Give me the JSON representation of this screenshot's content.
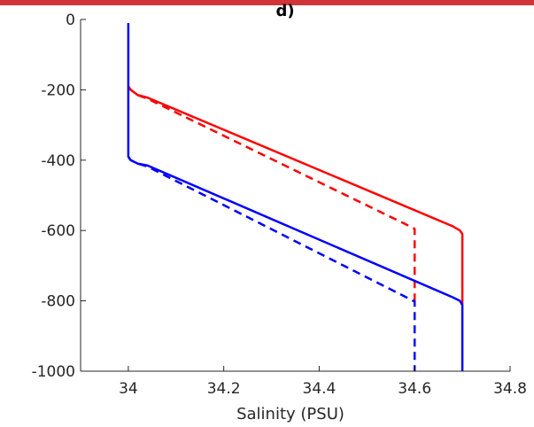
{
  "chart_data": {
    "type": "line",
    "title": "d)",
    "xlabel": "Salinity (PSU)",
    "ylabel": "",
    "xlim": [
      33.9,
      34.8
    ],
    "ylim": [
      -1000,
      0
    ],
    "xticks": [
      34,
      34.2,
      34.4,
      34.6,
      34.8
    ],
    "xtick_labels": [
      "34",
      "34.2",
      "34.4",
      "34.6",
      "34.8"
    ],
    "yticks": [
      0,
      -200,
      -400,
      -600,
      -800,
      -1000
    ],
    "ytick_labels": [
      "0",
      "-200",
      "-400",
      "-600",
      "-800",
      "-1000"
    ],
    "grid": false,
    "legend": "none",
    "series": [
      {
        "color": "#ff0000",
        "style": "solid",
        "x": [
          34.0,
          34.0,
          34.005,
          34.02,
          34.04,
          34.68,
          34.695,
          34.7,
          34.7
        ],
        "y": [
          -190,
          -190,
          -200,
          -215,
          -222,
          -588,
          -600,
          -610,
          -810
        ]
      },
      {
        "color": "#ff0000",
        "style": "dashed",
        "x": [
          34.0,
          34.005,
          34.02,
          34.04,
          34.59,
          34.6,
          34.6
        ],
        "y": [
          -190,
          -200,
          -215,
          -225,
          -588,
          -595,
          -810
        ]
      },
      {
        "color": "#0000ff",
        "style": "solid",
        "x": [
          34.0,
          34.0,
          34.005,
          34.02,
          34.04,
          34.68,
          34.695,
          34.7,
          34.7
        ],
        "y": [
          -10,
          -390,
          -400,
          -410,
          -415,
          -790,
          -800,
          -812,
          -1000
        ]
      },
      {
        "color": "#0000ff",
        "style": "dashed",
        "x": [
          34.0,
          34.005,
          34.02,
          34.04,
          34.59,
          34.6,
          34.6
        ],
        "y": [
          -390,
          -400,
          -410,
          -418,
          -795,
          -802,
          -1000
        ]
      }
    ]
  },
  "colors": {
    "top_bar": "#d13438",
    "axis": "#262626"
  }
}
